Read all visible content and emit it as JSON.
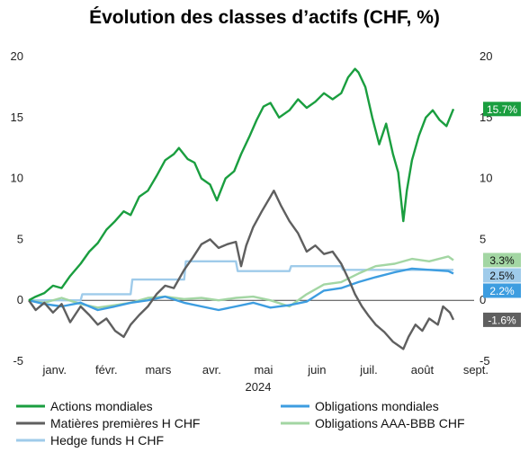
{
  "chart_data": {
    "type": "line",
    "title": "Évolution des classes d’actifs (CHF, %)",
    "xlabel": "",
    "ylabel": "",
    "year_label": "2024",
    "x_range": [
      "2024-01-01",
      "2024-09-15"
    ],
    "ylim": [
      -5,
      20
    ],
    "yticks": [
      -5,
      0,
      5,
      10,
      15,
      20
    ],
    "ytick_labels": [
      "-5",
      "0",
      "5",
      "10",
      "15",
      "20"
    ],
    "right_axis": true,
    "month_ticks": [
      {
        "label": "janv.",
        "x": "2024-01-16"
      },
      {
        "label": "févr.",
        "x": "2024-02-15"
      },
      {
        "label": "mars",
        "x": "2024-03-16"
      },
      {
        "label": "avr.",
        "x": "2024-04-16"
      },
      {
        "label": "mai",
        "x": "2024-05-16"
      },
      {
        "label": "juin",
        "x": "2024-06-16"
      },
      {
        "label": "juil.",
        "x": "2024-07-16"
      },
      {
        "label": "août",
        "x": "2024-08-16"
      },
      {
        "label": "sept.",
        "x": "2024-09-16"
      }
    ],
    "legend_placement": "bottom",
    "series": [
      {
        "name": "Actions mondiales",
        "color": "#1a9e3f",
        "end_label": "15.7%",
        "points": [
          [
            "2024-01-01",
            0
          ],
          [
            "2024-01-05",
            0.3
          ],
          [
            "2024-01-10",
            0.6
          ],
          [
            "2024-01-15",
            1.2
          ],
          [
            "2024-01-20",
            1.0
          ],
          [
            "2024-01-25",
            2.0
          ],
          [
            "2024-01-31",
            3.0
          ],
          [
            "2024-02-05",
            4.0
          ],
          [
            "2024-02-10",
            4.7
          ],
          [
            "2024-02-15",
            5.8
          ],
          [
            "2024-02-20",
            6.5
          ],
          [
            "2024-02-25",
            7.3
          ],
          [
            "2024-02-29",
            7.0
          ],
          [
            "2024-03-05",
            8.5
          ],
          [
            "2024-03-10",
            9.0
          ],
          [
            "2024-03-15",
            10.2
          ],
          [
            "2024-03-20",
            11.5
          ],
          [
            "2024-03-25",
            12.0
          ],
          [
            "2024-03-28",
            12.5
          ],
          [
            "2024-04-02",
            11.6
          ],
          [
            "2024-04-06",
            11.3
          ],
          [
            "2024-04-10",
            10.0
          ],
          [
            "2024-04-15",
            9.5
          ],
          [
            "2024-04-19",
            8.2
          ],
          [
            "2024-04-24",
            10.0
          ],
          [
            "2024-04-29",
            10.6
          ],
          [
            "2024-05-03",
            12.0
          ],
          [
            "2024-05-08",
            13.5
          ],
          [
            "2024-05-12",
            14.8
          ],
          [
            "2024-05-16",
            15.9
          ],
          [
            "2024-05-20",
            16.2
          ],
          [
            "2024-05-25",
            15.0
          ],
          [
            "2024-05-31",
            15.6
          ],
          [
            "2024-06-05",
            16.5
          ],
          [
            "2024-06-10",
            15.8
          ],
          [
            "2024-06-15",
            16.3
          ],
          [
            "2024-06-20",
            17.0
          ],
          [
            "2024-06-25",
            16.5
          ],
          [
            "2024-06-30",
            17.0
          ],
          [
            "2024-07-04",
            18.3
          ],
          [
            "2024-07-08",
            19.0
          ],
          [
            "2024-07-10",
            18.7
          ],
          [
            "2024-07-14",
            17.5
          ],
          [
            "2024-07-18",
            15.0
          ],
          [
            "2024-07-22",
            12.8
          ],
          [
            "2024-07-26",
            14.5
          ],
          [
            "2024-07-30",
            12.0
          ],
          [
            "2024-08-02",
            10.5
          ],
          [
            "2024-08-05",
            6.5
          ],
          [
            "2024-08-07",
            9.0
          ],
          [
            "2024-08-10",
            11.5
          ],
          [
            "2024-08-14",
            13.5
          ],
          [
            "2024-08-18",
            15.0
          ],
          [
            "2024-08-22",
            15.6
          ],
          [
            "2024-08-26",
            14.8
          ],
          [
            "2024-08-30",
            14.3
          ],
          [
            "2024-09-03",
            15.7
          ]
        ]
      },
      {
        "name": "Obligations mondiales",
        "color": "#3d9de0",
        "end_label": "2.2%",
        "points": [
          [
            "2024-01-01",
            0
          ],
          [
            "2024-01-10",
            -0.3
          ],
          [
            "2024-01-20",
            -0.5
          ],
          [
            "2024-01-31",
            -0.2
          ],
          [
            "2024-02-10",
            -0.8
          ],
          [
            "2024-02-20",
            -0.5
          ],
          [
            "2024-02-29",
            -0.2
          ],
          [
            "2024-03-10",
            0.0
          ],
          [
            "2024-03-20",
            0.3
          ],
          [
            "2024-03-31",
            -0.2
          ],
          [
            "2024-04-10",
            -0.5
          ],
          [
            "2024-04-20",
            -0.8
          ],
          [
            "2024-04-30",
            -0.5
          ],
          [
            "2024-05-10",
            -0.2
          ],
          [
            "2024-05-20",
            -0.6
          ],
          [
            "2024-05-31",
            -0.4
          ],
          [
            "2024-06-10",
            -0.1
          ],
          [
            "2024-06-20",
            0.8
          ],
          [
            "2024-06-30",
            1.0
          ],
          [
            "2024-07-10",
            1.5
          ],
          [
            "2024-07-20",
            1.9
          ],
          [
            "2024-07-31",
            2.3
          ],
          [
            "2024-08-10",
            2.6
          ],
          [
            "2024-08-20",
            2.5
          ],
          [
            "2024-08-31",
            2.4
          ],
          [
            "2024-09-03",
            2.2
          ]
        ]
      },
      {
        "name": "Matières premières H CHF",
        "color": "#5f5f5f",
        "end_label": "-1.6%",
        "points": [
          [
            "2024-01-01",
            0
          ],
          [
            "2024-01-05",
            -0.8
          ],
          [
            "2024-01-10",
            -0.2
          ],
          [
            "2024-01-15",
            -1.0
          ],
          [
            "2024-01-20",
            -0.3
          ],
          [
            "2024-01-25",
            -1.8
          ],
          [
            "2024-01-31",
            -0.5
          ],
          [
            "2024-02-05",
            -1.2
          ],
          [
            "2024-02-10",
            -2.0
          ],
          [
            "2024-02-15",
            -1.5
          ],
          [
            "2024-02-20",
            -2.5
          ],
          [
            "2024-02-25",
            -3.0
          ],
          [
            "2024-02-29",
            -2.0
          ],
          [
            "2024-03-05",
            -1.2
          ],
          [
            "2024-03-10",
            -0.5
          ],
          [
            "2024-03-15",
            0.5
          ],
          [
            "2024-03-20",
            1.2
          ],
          [
            "2024-03-25",
            1.0
          ],
          [
            "2024-03-31",
            2.5
          ],
          [
            "2024-04-05",
            3.5
          ],
          [
            "2024-04-10",
            4.6
          ],
          [
            "2024-04-15",
            5.0
          ],
          [
            "2024-04-20",
            4.3
          ],
          [
            "2024-04-25",
            4.6
          ],
          [
            "2024-04-30",
            4.8
          ],
          [
            "2024-05-03",
            2.8
          ],
          [
            "2024-05-06",
            4.5
          ],
          [
            "2024-05-10",
            6.0
          ],
          [
            "2024-05-15",
            7.3
          ],
          [
            "2024-05-20",
            8.5
          ],
          [
            "2024-05-22",
            9.0
          ],
          [
            "2024-05-26",
            7.8
          ],
          [
            "2024-05-31",
            6.5
          ],
          [
            "2024-06-05",
            5.5
          ],
          [
            "2024-06-10",
            4.0
          ],
          [
            "2024-06-15",
            4.5
          ],
          [
            "2024-06-20",
            3.8
          ],
          [
            "2024-06-25",
            4.0
          ],
          [
            "2024-06-30",
            3.0
          ],
          [
            "2024-07-05",
            1.5
          ],
          [
            "2024-07-08",
            0.5
          ],
          [
            "2024-07-12",
            -0.5
          ],
          [
            "2024-07-16",
            -1.3
          ],
          [
            "2024-07-20",
            -2.0
          ],
          [
            "2024-07-25",
            -2.6
          ],
          [
            "2024-07-30",
            -3.4
          ],
          [
            "2024-08-05",
            -4.0
          ],
          [
            "2024-08-08",
            -3.0
          ],
          [
            "2024-08-12",
            -2.0
          ],
          [
            "2024-08-16",
            -2.5
          ],
          [
            "2024-08-20",
            -1.5
          ],
          [
            "2024-08-25",
            -2.0
          ],
          [
            "2024-08-28",
            -0.5
          ],
          [
            "2024-09-01",
            -1.0
          ],
          [
            "2024-09-03",
            -1.6
          ]
        ]
      },
      {
        "name": "Obligations AAA-BBB CHF",
        "color": "#a3d6a3",
        "end_label": "3.3%",
        "points": [
          [
            "2024-01-01",
            0
          ],
          [
            "2024-01-10",
            -0.2
          ],
          [
            "2024-01-20",
            0.2
          ],
          [
            "2024-01-31",
            -0.3
          ],
          [
            "2024-02-10",
            -0.6
          ],
          [
            "2024-02-20",
            -0.4
          ],
          [
            "2024-02-29",
            -0.2
          ],
          [
            "2024-03-10",
            0.2
          ],
          [
            "2024-03-20",
            0.3
          ],
          [
            "2024-03-31",
            0.1
          ],
          [
            "2024-04-10",
            0.2
          ],
          [
            "2024-04-20",
            0.0
          ],
          [
            "2024-04-30",
            0.2
          ],
          [
            "2024-05-10",
            0.3
          ],
          [
            "2024-05-20",
            0.0
          ],
          [
            "2024-05-31",
            -0.5
          ],
          [
            "2024-06-10",
            0.5
          ],
          [
            "2024-06-20",
            1.3
          ],
          [
            "2024-06-30",
            1.5
          ],
          [
            "2024-07-10",
            2.2
          ],
          [
            "2024-07-20",
            2.8
          ],
          [
            "2024-07-31",
            3.0
          ],
          [
            "2024-08-10",
            3.4
          ],
          [
            "2024-08-20",
            3.2
          ],
          [
            "2024-08-31",
            3.6
          ],
          [
            "2024-09-03",
            3.3
          ]
        ]
      },
      {
        "name": "Hedge funds H CHF",
        "color": "#9fcbea",
        "end_label": "2.5%",
        "points": [
          [
            "2024-01-01",
            0
          ],
          [
            "2024-01-31",
            0
          ],
          [
            "2024-02-01",
            0.5
          ],
          [
            "2024-02-29",
            0.5
          ],
          [
            "2024-03-01",
            1.7
          ],
          [
            "2024-03-31",
            1.7
          ],
          [
            "2024-04-01",
            3.2
          ],
          [
            "2024-04-30",
            3.2
          ],
          [
            "2024-05-01",
            2.4
          ],
          [
            "2024-05-31",
            2.4
          ],
          [
            "2024-06-01",
            2.8
          ],
          [
            "2024-06-30",
            2.8
          ],
          [
            "2024-07-01",
            2.5
          ],
          [
            "2024-09-03",
            2.5
          ]
        ]
      }
    ]
  }
}
